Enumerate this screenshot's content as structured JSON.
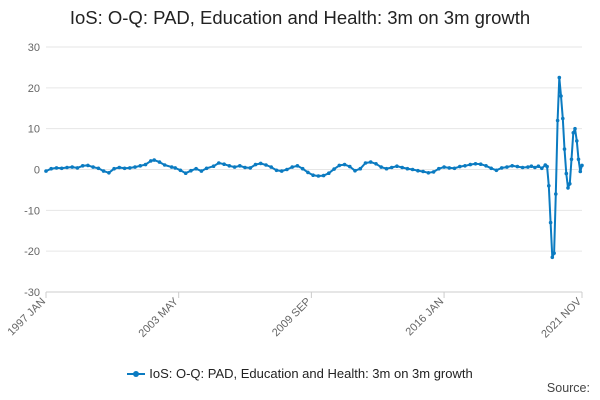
{
  "title": "IoS: O-Q: PAD, Education and Health: 3m on 3m growth",
  "source_label": "Source:",
  "chart_data": {
    "type": "line",
    "title": "IoS: O-Q: PAD, Education and Health: 3m on 3m growth",
    "xlabel": "",
    "ylabel": "",
    "ylim": [
      -30,
      30
    ],
    "y_ticks": [
      "30",
      "20",
      "10",
      "0",
      "-10",
      "-20",
      "-30"
    ],
    "x_tick_labels": [
      "1997 JAN",
      "2003 MAY",
      "2009 SEP",
      "2016 JAN",
      "2021 NOV"
    ],
    "grid": true,
    "legend_position": "bottom",
    "color": "#0b7bc1",
    "series": [
      {
        "name": "IoS: O-Q: PAD, Education and Health: 3m on 3m growth",
        "points": [
          [
            "1997-01",
            -0.4
          ],
          [
            "1997-04",
            0.2
          ],
          [
            "1997-07",
            0.4
          ],
          [
            "1997-10",
            0.3
          ],
          [
            "1998-01",
            0.5
          ],
          [
            "1998-04",
            0.6
          ],
          [
            "1998-07",
            0.4
          ],
          [
            "1998-10",
            0.9
          ],
          [
            "1999-01",
            1.0
          ],
          [
            "1999-04",
            0.6
          ],
          [
            "1999-07",
            0.3
          ],
          [
            "1999-10",
            -0.4
          ],
          [
            "2000-01",
            -0.8
          ],
          [
            "2000-04",
            0.2
          ],
          [
            "2000-07",
            0.5
          ],
          [
            "2000-10",
            0.3
          ],
          [
            "2001-01",
            0.4
          ],
          [
            "2001-04",
            0.6
          ],
          [
            "2001-07",
            0.9
          ],
          [
            "2001-10",
            1.2
          ],
          [
            "2002-01",
            2.1
          ],
          [
            "2002-03",
            2.3
          ],
          [
            "2002-06",
            1.8
          ],
          [
            "2002-09",
            1.1
          ],
          [
            "2003-01",
            0.6
          ],
          [
            "2003-03",
            0.4
          ],
          [
            "2003-06",
            -0.2
          ],
          [
            "2003-09",
            -0.9
          ],
          [
            "2003-12",
            -0.3
          ],
          [
            "2004-03",
            0.2
          ],
          [
            "2004-06",
            -0.4
          ],
          [
            "2004-09",
            0.3
          ],
          [
            "2005-01",
            0.8
          ],
          [
            "2005-04",
            1.6
          ],
          [
            "2005-07",
            1.3
          ],
          [
            "2005-10",
            0.9
          ],
          [
            "2006-01",
            0.6
          ],
          [
            "2006-04",
            0.9
          ],
          [
            "2006-07",
            0.5
          ],
          [
            "2006-10",
            0.4
          ],
          [
            "2007-01",
            1.2
          ],
          [
            "2007-04",
            1.5
          ],
          [
            "2007-07",
            1.1
          ],
          [
            "2007-10",
            0.6
          ],
          [
            "2008-01",
            -0.2
          ],
          [
            "2008-04",
            -0.4
          ],
          [
            "2008-07",
            0.0
          ],
          [
            "2008-10",
            0.6
          ],
          [
            "2009-01",
            0.9
          ],
          [
            "2009-04",
            0.2
          ],
          [
            "2009-07",
            -0.7
          ],
          [
            "2009-10",
            -1.4
          ],
          [
            "2010-01",
            -1.6
          ],
          [
            "2010-04",
            -1.5
          ],
          [
            "2010-07",
            -0.9
          ],
          [
            "2010-10",
            0.1
          ],
          [
            "2011-01",
            1.0
          ],
          [
            "2011-04",
            1.2
          ],
          [
            "2011-07",
            0.7
          ],
          [
            "2011-10",
            -0.3
          ],
          [
            "2012-01",
            0.2
          ],
          [
            "2012-04",
            1.6
          ],
          [
            "2012-07",
            1.8
          ],
          [
            "2012-10",
            1.4
          ],
          [
            "2013-01",
            0.6
          ],
          [
            "2013-04",
            0.2
          ],
          [
            "2013-07",
            0.5
          ],
          [
            "2013-10",
            0.8
          ],
          [
            "2014-01",
            0.5
          ],
          [
            "2014-04",
            0.2
          ],
          [
            "2014-07",
            0.0
          ],
          [
            "2014-10",
            -0.3
          ],
          [
            "2015-01",
            -0.5
          ],
          [
            "2015-04",
            -0.8
          ],
          [
            "2015-07",
            -0.6
          ],
          [
            "2015-10",
            0.2
          ],
          [
            "2016-01",
            0.6
          ],
          [
            "2016-04",
            0.4
          ],
          [
            "2016-07",
            0.3
          ],
          [
            "2016-10",
            0.7
          ],
          [
            "2017-01",
            0.9
          ],
          [
            "2017-04",
            1.2
          ],
          [
            "2017-07",
            1.4
          ],
          [
            "2017-10",
            1.3
          ],
          [
            "2018-01",
            0.9
          ],
          [
            "2018-04",
            0.3
          ],
          [
            "2018-07",
            -0.2
          ],
          [
            "2018-10",
            0.4
          ],
          [
            "2019-01",
            0.6
          ],
          [
            "2019-04",
            0.9
          ],
          [
            "2019-07",
            0.7
          ],
          [
            "2019-10",
            0.5
          ],
          [
            "2020-01",
            0.6
          ],
          [
            "2020-03",
            0.8
          ],
          [
            "2020-05",
            0.5
          ],
          [
            "2020-07",
            0.8
          ],
          [
            "2020-09",
            0.3
          ],
          [
            "2020-11",
            1.1
          ],
          [
            "2020-12",
            0.7
          ],
          [
            "2021-01",
            -4.0
          ],
          [
            "2021-02",
            -13.0
          ],
          [
            "2021-03",
            -21.5
          ],
          [
            "2021-04",
            -20.5
          ],
          [
            "2021-05",
            -6.0
          ],
          [
            "2021-06",
            12.0
          ],
          [
            "2021-07",
            22.5
          ],
          [
            "2021-08",
            18.0
          ],
          [
            "2021-09",
            12.5
          ],
          [
            "2021-10",
            5.0
          ],
          [
            "2021-11",
            -1.0
          ],
          [
            "2021-12",
            -4.5
          ],
          [
            "2022-01",
            -3.5
          ],
          [
            "2022-02",
            2.5
          ],
          [
            "2022-03",
            9.0
          ],
          [
            "2022-04",
            10.0
          ],
          [
            "2022-05",
            7.0
          ],
          [
            "2022-06",
            2.5
          ],
          [
            "2022-07",
            -0.5
          ],
          [
            "2022-08",
            1.0
          ]
        ]
      }
    ]
  }
}
